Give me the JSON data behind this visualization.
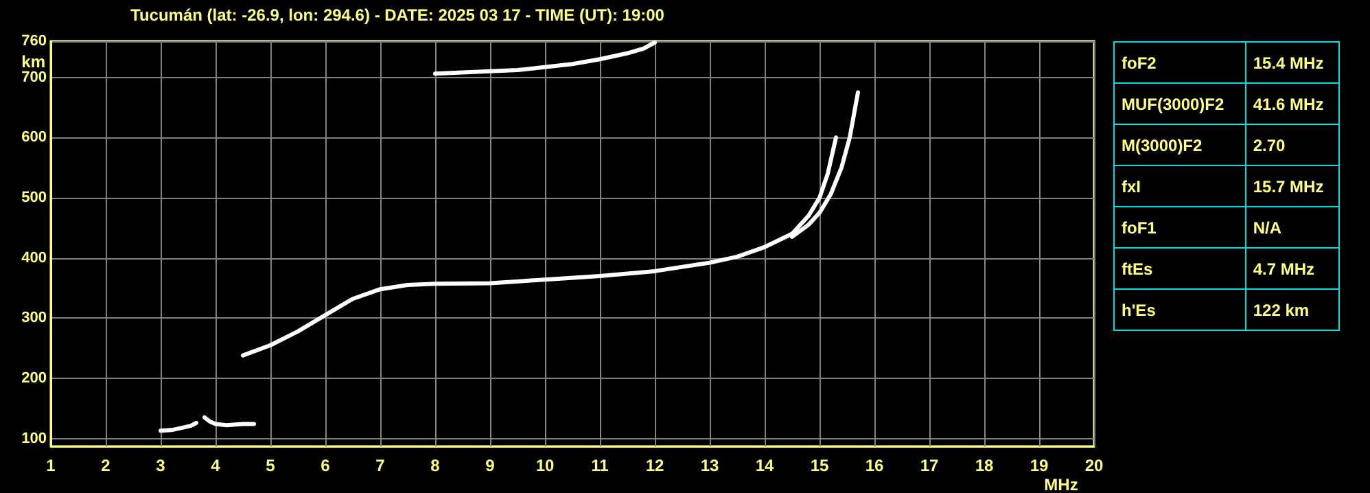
{
  "chart_data": [
    {
      "type": "line",
      "title": "Tucumán (lat: -26.9, lon: 294.6) - DATE: 2025 03 17 - TIME (UT): 19:00",
      "xlabel": "MHz",
      "ylabel": "km",
      "xlim": [
        1,
        20
      ],
      "xticks": [
        1,
        2,
        3,
        4,
        5,
        6,
        7,
        8,
        9,
        10,
        11,
        12,
        13,
        14,
        15,
        16,
        17,
        18,
        19,
        20
      ],
      "ylim": [
        87,
        760
      ],
      "yticks": [
        100,
        200,
        300,
        400,
        500,
        600,
        700,
        760
      ],
      "grid": true,
      "marker": "none",
      "line_style": "solid",
      "series": [
        {
          "color": "#ffffff",
          "x": [
            3.0,
            3.2,
            3.4,
            3.55,
            3.65
          ],
          "values": [
            113,
            114,
            118,
            121,
            126
          ]
        },
        {
          "color": "#ffffff",
          "x": [
            3.8,
            3.9,
            4.0,
            4.2,
            4.5,
            4.7
          ],
          "values": [
            135,
            128,
            124,
            122,
            124,
            124
          ]
        },
        {
          "color": "#ffffff",
          "x": [
            4.5,
            5.0,
            5.5,
            6.0,
            6.5,
            7.0,
            7.5,
            8.0,
            9.0,
            10.0,
            11.0,
            12.0,
            13.0,
            13.5,
            14.0,
            14.5,
            14.8,
            15.0,
            15.15,
            15.3
          ],
          "values": [
            238,
            255,
            278,
            305,
            332,
            348,
            355,
            357,
            358,
            364,
            370,
            378,
            392,
            402,
            418,
            440,
            470,
            500,
            540,
            600
          ]
        },
        {
          "color": "#ffffff",
          "x": [
            14.5,
            14.8,
            15.0,
            15.2,
            15.4,
            15.55,
            15.65,
            15.7
          ],
          "values": [
            435,
            455,
            475,
            505,
            550,
            600,
            650,
            675
          ]
        },
        {
          "color": "#ffffff",
          "x": [
            8.0,
            9.0,
            9.5,
            10.5,
            11.0,
            11.5,
            11.8,
            12.0
          ],
          "values": [
            706,
            710,
            712,
            722,
            730,
            740,
            748,
            758
          ]
        }
      ]
    },
    {
      "type": "other",
      "annotations": [
        "foF2",
        "15.4 MHz",
        "MUF(3000)F2",
        "41.6 MHz",
        "M(3000)F2",
        "2.70",
        "fxI",
        "15.7 MHz",
        "foF1",
        "N/A",
        "ftEs",
        "4.7 MHz",
        "h'Es",
        "122 km"
      ]
    }
  ]
}
